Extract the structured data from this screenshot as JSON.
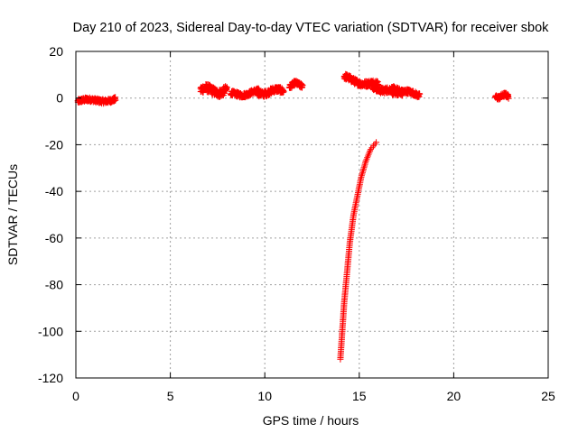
{
  "chart_data": {
    "type": "scatter",
    "title": "Day 210 of 2023, Sidereal Day-to-day VTEC variation (SDTVAR) for receiver sbok",
    "xlabel": "GPS time / hours",
    "ylabel": "SDTVAR / TECUs",
    "xlim": [
      0,
      25
    ],
    "ylim": [
      -120,
      20
    ],
    "xticks": [
      0,
      5,
      10,
      15,
      20,
      25
    ],
    "yticks": [
      -120,
      -100,
      -80,
      -60,
      -40,
      -20,
      0,
      20
    ],
    "grid": true,
    "marker": "plus",
    "colors": {
      "series": "#ff0000",
      "grid": "#a0a0a0",
      "axes": "#000000"
    },
    "series": [
      {
        "segments": [
          {
            "x0": 0.1,
            "x1": 2.1,
            "y0": -1.5,
            "y1": -0.5,
            "spread": 1.8
          },
          {
            "x0": 6.6,
            "x1": 8.0,
            "y0": 3.0,
            "y1": 3.5,
            "spread": 3.5
          },
          {
            "x0": 8.2,
            "x1": 9.7,
            "y0": 1.5,
            "y1": 2.5,
            "spread": 2.0
          },
          {
            "x0": 9.6,
            "x1": 11.0,
            "y0": 2.5,
            "y1": 3.0,
            "spread": 2.5
          },
          {
            "x0": 11.3,
            "x1": 12.0,
            "y0": 5.5,
            "y1": 6.0,
            "spread": 2.0
          },
          {
            "x0": 14.2,
            "x1": 16.0,
            "y0": 8.5,
            "y1": 5.5,
            "spread": 2.5
          },
          {
            "x0": 15.7,
            "x1": 17.3,
            "y0": 5.0,
            "y1": 2.0,
            "spread": 2.5
          },
          {
            "x0": 16.7,
            "x1": 18.2,
            "y0": 3.0,
            "y1": 1.5,
            "spread": 2.0
          },
          {
            "x0": 22.2,
            "x1": 22.9,
            "y0": 0.8,
            "y1": 0.8,
            "spread": 1.8
          }
        ],
        "curve": [
          [
            14.0,
            -112
          ],
          [
            14.1,
            -100
          ],
          [
            14.2,
            -88
          ],
          [
            14.35,
            -75
          ],
          [
            14.5,
            -62
          ],
          [
            14.7,
            -50
          ],
          [
            14.9,
            -42
          ],
          [
            15.1,
            -34
          ],
          [
            15.35,
            -27
          ],
          [
            15.6,
            -22
          ],
          [
            15.9,
            -19
          ]
        ]
      }
    ]
  }
}
